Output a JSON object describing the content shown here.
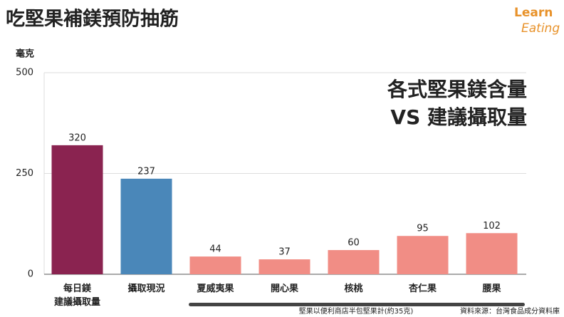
{
  "chart_data": {
    "type": "bar",
    "title": "吃堅果補鎂預防抽筋",
    "logo": [
      "Learn",
      "Eating"
    ],
    "y_label": "毫克",
    "annotation": [
      "各式堅果鎂含量",
      "VS 建議攝取量"
    ],
    "categories": [
      "每日鎂\n建議攝取量",
      "攝取現況",
      "夏威夷果",
      "開心果",
      "核桃",
      "杏仁果",
      "腰果"
    ],
    "values": [
      320,
      237,
      44,
      37,
      60,
      95,
      102
    ],
    "colors": [
      "#8a2350",
      "#4a87b9",
      "#f18d85",
      "#f18d85",
      "#f18d85",
      "#f18d85",
      "#f18d85"
    ],
    "ylim": [
      0,
      500
    ],
    "yticks": [
      0,
      250,
      500
    ],
    "grid": true,
    "note": "堅果以便利商店半包堅果計(約35克)",
    "source": "資料來源：台灣食品成分資料庫"
  }
}
